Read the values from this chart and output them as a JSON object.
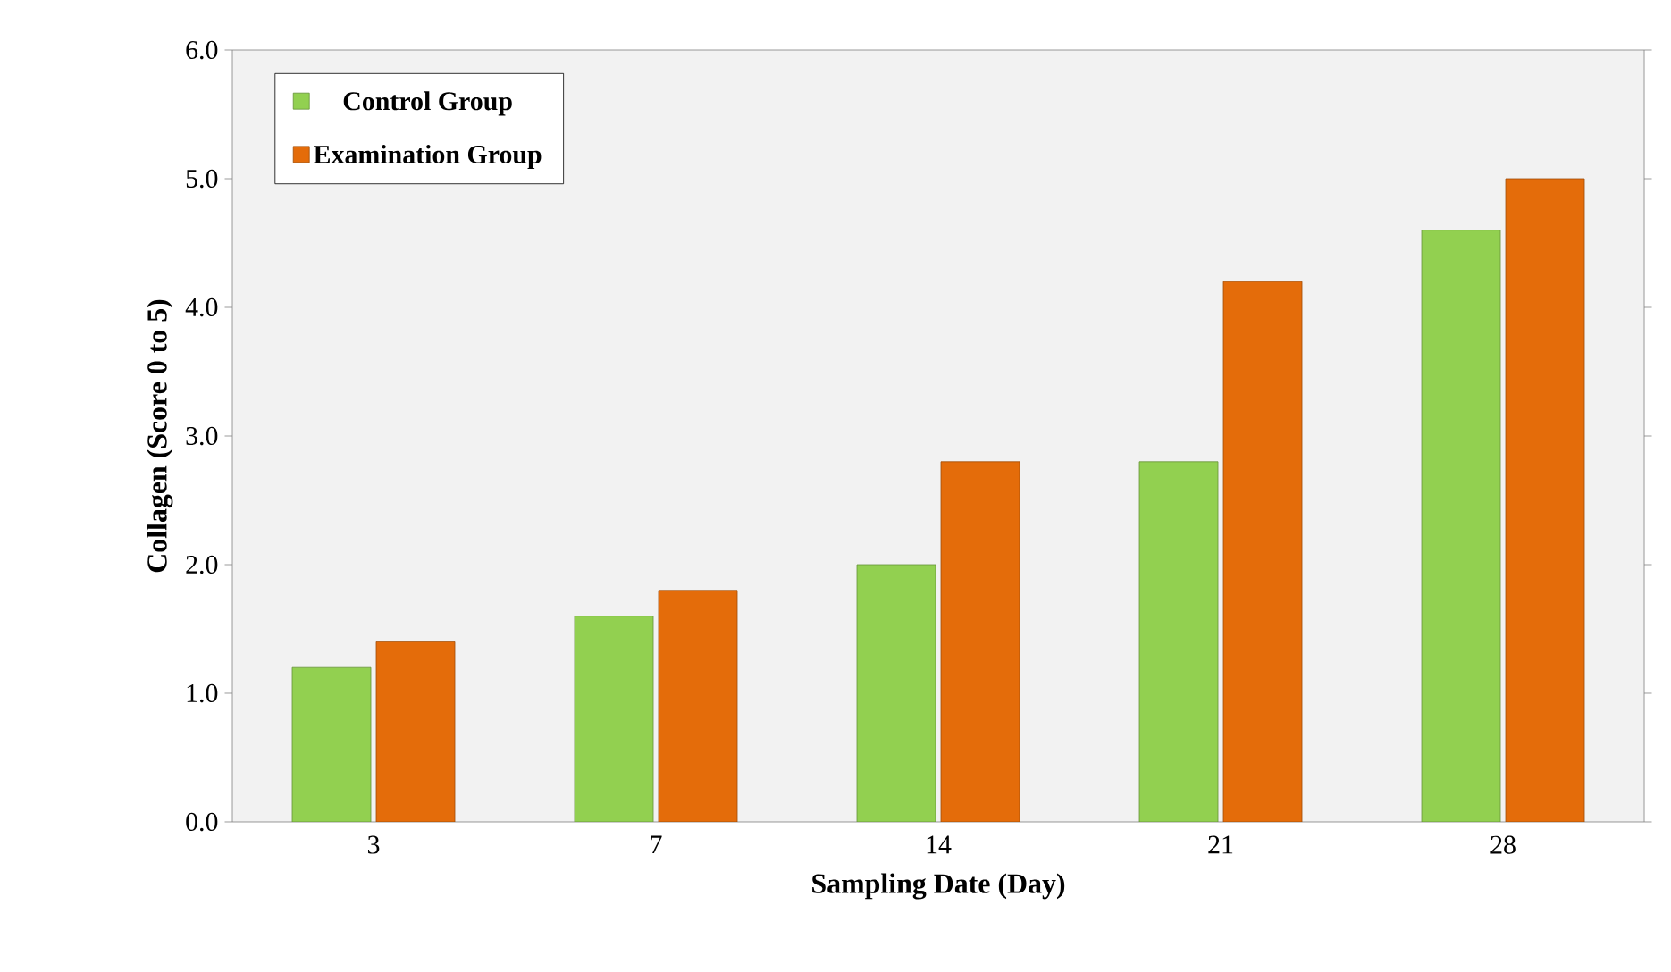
{
  "chart_data": {
    "type": "bar",
    "xlabel": "Sampling Date (Day)",
    "ylabel": "Collagen (Score 0 to 5)",
    "categories": [
      "3",
      "7",
      "14",
      "21",
      "28"
    ],
    "series": [
      {
        "name": "Control Group",
        "color": "#92d050",
        "values": [
          1.2,
          1.6,
          2.0,
          2.8,
          4.6
        ]
      },
      {
        "name": "Examination Group",
        "color": "#e46c0a",
        "values": [
          1.4,
          1.8,
          2.8,
          4.2,
          5.0
        ]
      }
    ],
    "ylim": [
      0,
      6
    ],
    "yticks": [
      {
        "value": 0,
        "label": "0.0"
      },
      {
        "value": 1,
        "label": "1.0"
      },
      {
        "value": 2,
        "label": "2.0"
      },
      {
        "value": 3,
        "label": "3.0"
      },
      {
        "value": 4,
        "label": "4.0"
      },
      {
        "value": 5,
        "label": "5.0"
      },
      {
        "value": 6,
        "label": "6.0"
      }
    ],
    "legend": "top left"
  }
}
